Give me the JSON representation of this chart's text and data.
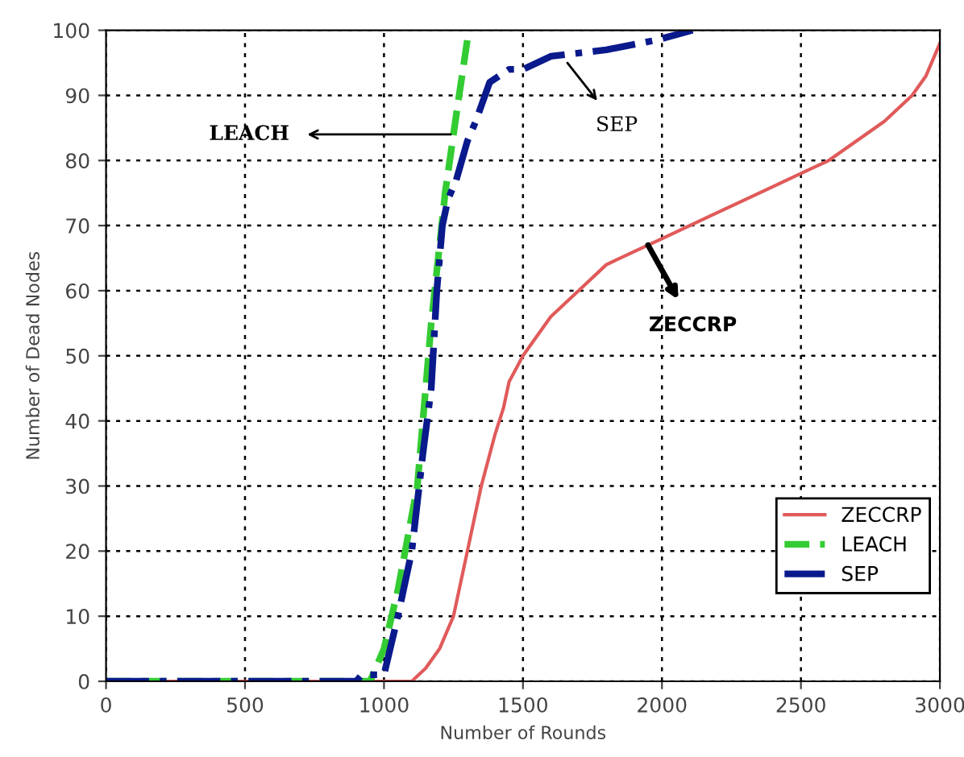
{
  "chart_data": {
    "type": "line",
    "xlabel": "Number of Rounds",
    "ylabel": "Number of Dead Nodes",
    "xlim": [
      0,
      3000
    ],
    "ylim": [
      0,
      100
    ],
    "xticks": [
      0,
      500,
      1000,
      1500,
      2000,
      2500,
      3000
    ],
    "yticks": [
      0,
      10,
      20,
      30,
      40,
      50,
      60,
      70,
      80,
      90,
      100
    ],
    "grid": true,
    "legend": "bottom right",
    "series": [
      {
        "name": "ZECCRP",
        "color": "#e05a5a",
        "line_style": "solid",
        "x": [
          0,
          1100,
          1150,
          1200,
          1250,
          1300,
          1350,
          1400,
          1430,
          1450,
          1500,
          1600,
          1700,
          1800,
          1900,
          2000,
          2200,
          2400,
          2500,
          2600,
          2700,
          2800,
          2900,
          2950,
          3000
        ],
        "values": [
          0,
          0,
          2,
          5,
          10,
          20,
          30,
          38,
          42,
          46,
          50,
          56,
          60,
          64,
          66,
          68,
          72,
          76,
          78,
          80,
          83,
          86,
          90,
          93,
          98
        ]
      },
      {
        "name": "LEACH",
        "color": "#33cc33",
        "line_style": "dashed",
        "x": [
          0,
          950,
          1000,
          1050,
          1120,
          1170,
          1220,
          1260,
          1305
        ],
        "values": [
          0,
          0,
          5,
          14,
          30,
          55,
          75,
          87,
          100
        ]
      },
      {
        "name": "SEP",
        "color": "#0a1a8c",
        "line_style": "dashdot",
        "x": [
          0,
          900,
          920,
          1000,
          1050,
          1100,
          1140,
          1170,
          1190,
          1210,
          1230,
          1260,
          1280,
          1300,
          1330,
          1380,
          1450,
          1500,
          1600,
          1800,
          1980,
          2110
        ],
        "values": [
          0,
          0,
          1,
          1,
          10,
          20,
          35,
          45,
          60,
          70,
          74,
          77,
          80,
          83,
          86,
          92,
          94,
          94,
          96,
          97,
          98.5,
          100
        ]
      }
    ],
    "annotations": [
      {
        "text": "LEACH",
        "x": 1240,
        "y": 84
      },
      {
        "text": "SEP",
        "x": 1660,
        "y": 95
      },
      {
        "text": "ZECCRP",
        "x": 1950,
        "y": 67
      }
    ]
  }
}
